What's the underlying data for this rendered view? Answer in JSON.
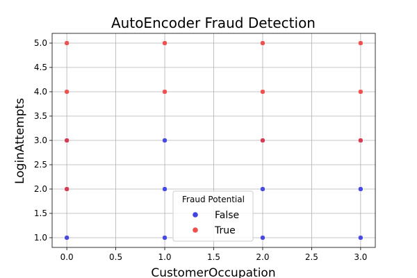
{
  "chart_data": {
    "type": "scatter",
    "title": "AutoEncoder Fraud Detection",
    "xlabel": "CustomerOccupation",
    "ylabel": "LoginAttempts",
    "xlim": [
      -0.15,
      3.15
    ],
    "ylim": [
      0.8,
      5.2
    ],
    "xticks": [
      "0.0",
      "0.5",
      "1.0",
      "1.5",
      "2.0",
      "2.5",
      "3.0"
    ],
    "yticks": [
      "1.0",
      "1.5",
      "2.0",
      "2.5",
      "3.0",
      "3.5",
      "4.0",
      "4.5",
      "5.0"
    ],
    "grid": true,
    "legend": {
      "title": "Fraud Potential",
      "placement": "bottom-center",
      "entries": [
        {
          "label": "False",
          "color": "#2f2fe0"
        },
        {
          "label": "True",
          "color": "#ee3a3a"
        }
      ]
    },
    "series": [
      {
        "name": "False",
        "color": "#2f2fe0",
        "points": [
          {
            "x": 0,
            "y": 1
          },
          {
            "x": 1,
            "y": 1
          },
          {
            "x": 2,
            "y": 1
          },
          {
            "x": 3,
            "y": 1
          },
          {
            "x": 0,
            "y": 2
          },
          {
            "x": 1,
            "y": 2
          },
          {
            "x": 2,
            "y": 2
          },
          {
            "x": 3,
            "y": 2
          },
          {
            "x": 0,
            "y": 3
          },
          {
            "x": 1,
            "y": 3
          },
          {
            "x": 2,
            "y": 3
          },
          {
            "x": 3,
            "y": 3
          }
        ]
      },
      {
        "name": "True",
        "color": "#ee3a3a",
        "points": [
          {
            "x": 0,
            "y": 2
          },
          {
            "x": 0,
            "y": 3
          },
          {
            "x": 2,
            "y": 3
          },
          {
            "x": 3,
            "y": 3
          },
          {
            "x": 0,
            "y": 4
          },
          {
            "x": 1,
            "y": 4
          },
          {
            "x": 2,
            "y": 4
          },
          {
            "x": 3,
            "y": 4
          },
          {
            "x": 0,
            "y": 5
          },
          {
            "x": 1,
            "y": 5
          },
          {
            "x": 2,
            "y": 5
          },
          {
            "x": 3,
            "y": 5
          }
        ]
      }
    ]
  }
}
